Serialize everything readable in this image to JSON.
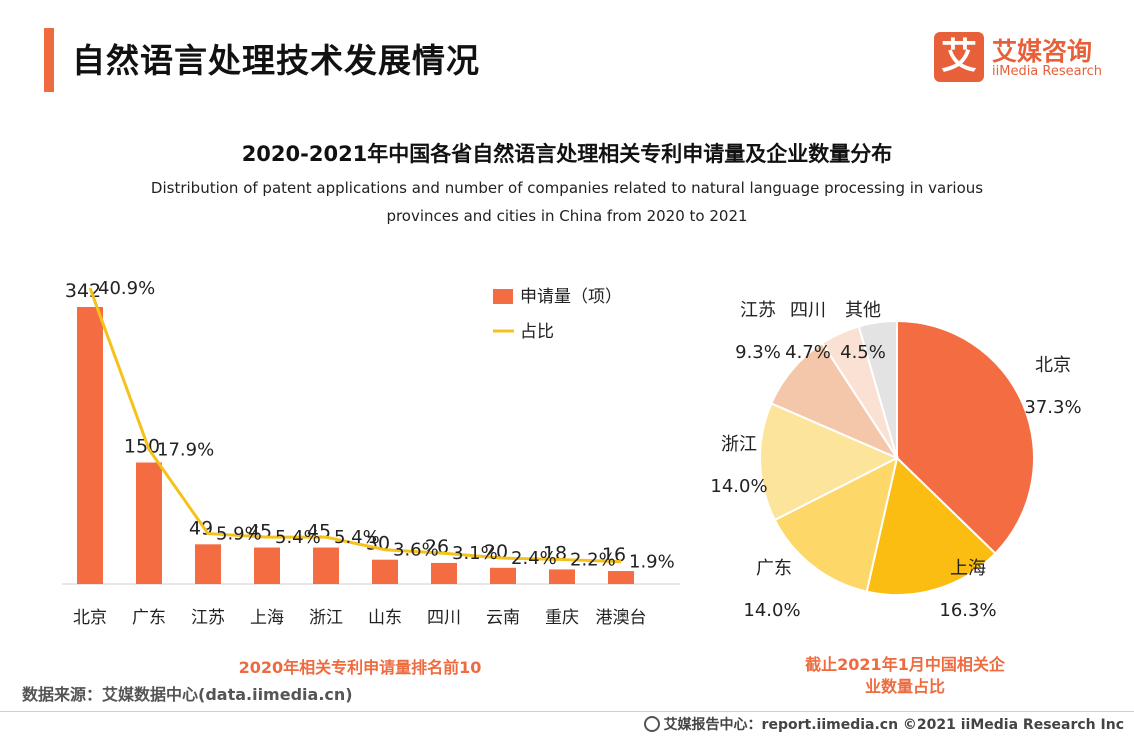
{
  "header": {
    "title": "自然语言处理技术发展情况",
    "logo_mark": "艾",
    "logo_cn": "艾媒咨询",
    "logo_en": "iiMedia Research"
  },
  "chart_title": "2020-2021年中国各省自然语言处理相关专利申请量及企业数量分布",
  "chart_subtitle": "Distribution of patent applications and number of companies related to natural language processing in various provinces and cities in China from 2020 to 2021",
  "colors": {
    "accent": "#ee6b3f",
    "bar": "#f36c42",
    "line": "#f5c21b",
    "pie": [
      "#f36c42",
      "#fbbd12",
      "#fdd767",
      "#fde49b",
      "#f4c6aa",
      "#fbe1d3",
      "#e3e3e3"
    ]
  },
  "chart_data": [
    {
      "type": "bar",
      "title": "2020年相关专利申请量排名前10",
      "categories": [
        "北京",
        "广东",
        "江苏",
        "上海",
        "浙江",
        "山东",
        "四川",
        "云南",
        "重庆",
        "港澳台"
      ],
      "series": [
        {
          "name": "申请量（项）",
          "type": "bar",
          "values": [
            342,
            150,
            49,
            45,
            45,
            30,
            26,
            20,
            18,
            16
          ]
        },
        {
          "name": "占比",
          "type": "line",
          "values": [
            40.9,
            17.9,
            5.9,
            5.4,
            5.4,
            3.6,
            3.1,
            2.4,
            2.2,
            1.9
          ],
          "labels": [
            "40.9%",
            "17.9%",
            "5.9%",
            "5.4%",
            "5.4%",
            "3.6%",
            "3.1%",
            "2.4%",
            "2.2%",
            "1.9%"
          ]
        }
      ],
      "legend": [
        "申请量（项）",
        "占比"
      ],
      "ylim": [
        0,
        342
      ]
    },
    {
      "type": "pie",
      "title": "截止2021年1月中国相关企业数量占比",
      "labels": [
        "北京",
        "上海",
        "广东",
        "浙江",
        "江苏",
        "四川",
        "其他"
      ],
      "values": [
        37.3,
        16.3,
        14.0,
        14.0,
        9.3,
        4.7,
        4.5
      ],
      "value_labels": [
        "37.3%",
        "16.3%",
        "14.0%",
        "14.0%",
        "9.3%",
        "4.7%",
        "4.5%"
      ]
    }
  ],
  "captions": {
    "left": "2020年相关专利申请量排名前10",
    "right_line1": "截止2021年1月中国相关企",
    "right_line2": "业数量占比"
  },
  "source": "数据来源：艾媒数据中心(data.iimedia.cn)",
  "footer": "艾媒报告中心：report.iimedia.cn  ©2021  iiMedia Research  Inc"
}
